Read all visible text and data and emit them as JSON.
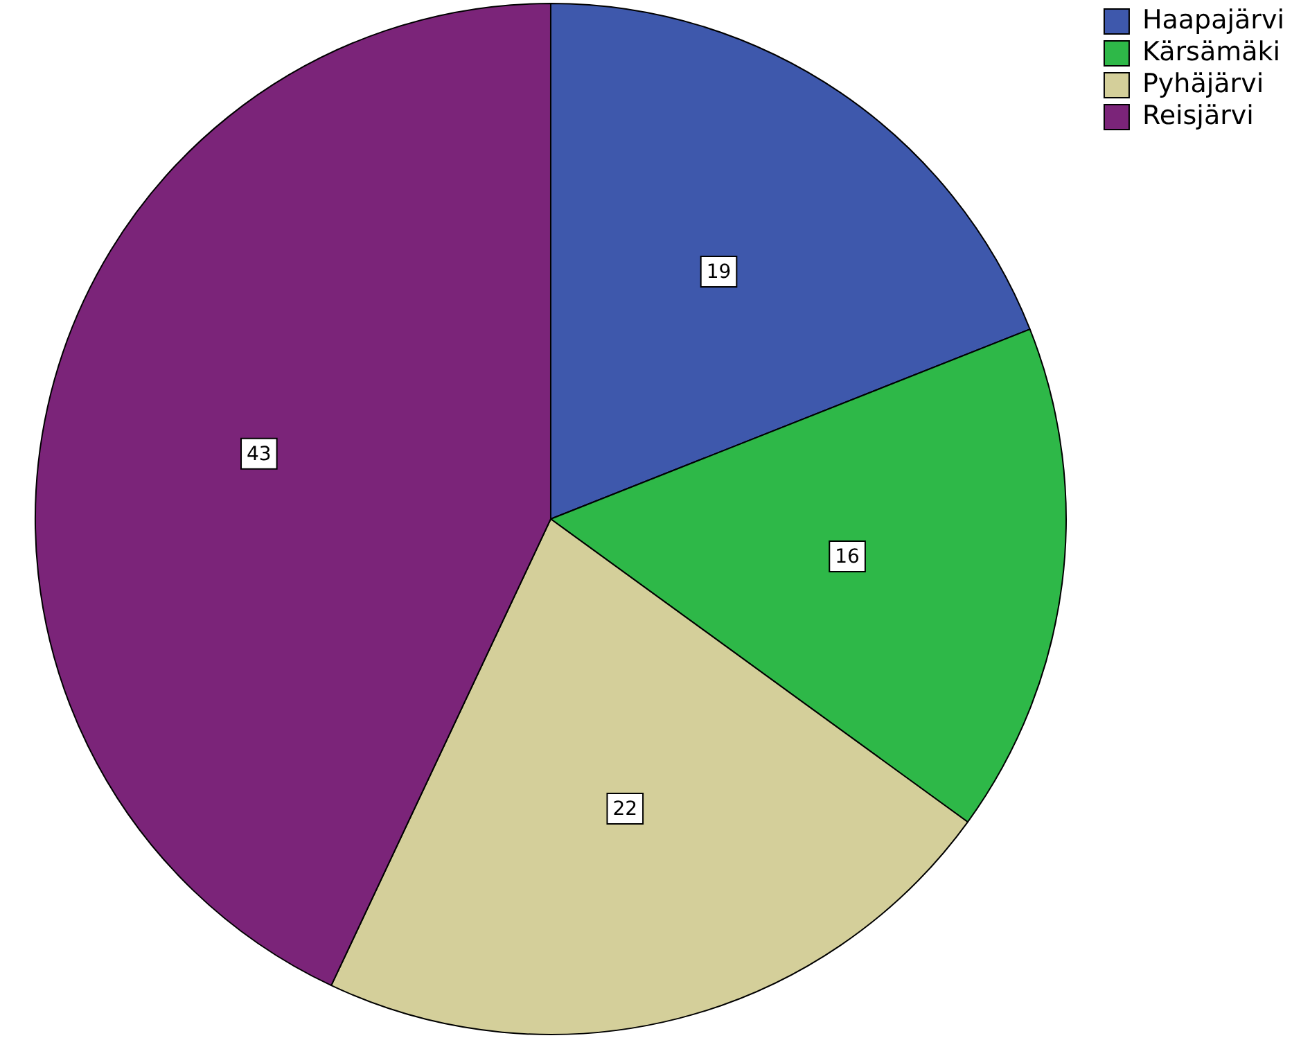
{
  "chart_data": {
    "type": "pie",
    "categories": [
      "Haapajärvi",
      "Kärsämäki",
      "Pyhäjärvi",
      "Reisjärvi"
    ],
    "values": [
      19,
      16,
      22,
      43
    ],
    "colors": [
      "#3e58ac",
      "#2eb848",
      "#d4cf9a",
      "#7b2479"
    ],
    "data_labels": true,
    "legend": "top right"
  }
}
